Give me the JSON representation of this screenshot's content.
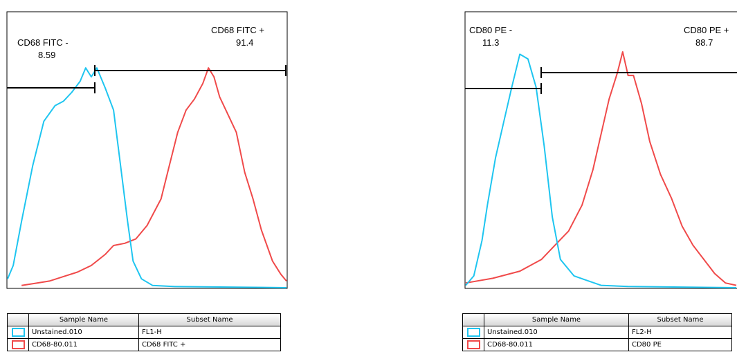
{
  "chart_data": [
    {
      "type": "histogram",
      "parameter": "FL1-H",
      "series": [
        {
          "name": "Unstained.010",
          "color": "#1ec5f0",
          "values": [
            [
              0,
              0.04
            ],
            [
              0.02,
              0.1
            ],
            [
              0.05,
              0.3
            ],
            [
              0.09,
              0.55
            ],
            [
              0.13,
              0.75
            ],
            [
              0.17,
              0.82
            ],
            [
              0.2,
              0.84
            ],
            [
              0.23,
              0.88
            ],
            [
              0.26,
              0.93
            ],
            [
              0.28,
              0.99
            ],
            [
              0.3,
              0.95
            ],
            [
              0.32,
              0.99
            ],
            [
              0.35,
              0.9
            ],
            [
              0.38,
              0.8
            ],
            [
              0.4,
              0.6
            ],
            [
              0.43,
              0.3
            ],
            [
              0.45,
              0.12
            ],
            [
              0.48,
              0.04
            ],
            [
              0.52,
              0.01
            ],
            [
              0.6,
              0.005
            ],
            [
              1,
              0
            ]
          ]
        },
        {
          "name": "CD68-80.011",
          "color": "#f04a4a",
          "values": [
            [
              0.05,
              0.01
            ],
            [
              0.1,
              0.02
            ],
            [
              0.15,
              0.03
            ],
            [
              0.2,
              0.05
            ],
            [
              0.25,
              0.07
            ],
            [
              0.3,
              0.1
            ],
            [
              0.35,
              0.15
            ],
            [
              0.38,
              0.19
            ],
            [
              0.42,
              0.2
            ],
            [
              0.46,
              0.22
            ],
            [
              0.5,
              0.28
            ],
            [
              0.55,
              0.4
            ],
            [
              0.58,
              0.55
            ],
            [
              0.61,
              0.7
            ],
            [
              0.64,
              0.8
            ],
            [
              0.67,
              0.85
            ],
            [
              0.7,
              0.92
            ],
            [
              0.72,
              0.99
            ],
            [
              0.74,
              0.95
            ],
            [
              0.76,
              0.86
            ],
            [
              0.79,
              0.78
            ],
            [
              0.82,
              0.7
            ],
            [
              0.85,
              0.52
            ],
            [
              0.88,
              0.4
            ],
            [
              0.91,
              0.26
            ],
            [
              0.95,
              0.12
            ],
            [
              0.98,
              0.06
            ],
            [
              1,
              0.03
            ]
          ]
        }
      ],
      "gates": [
        {
          "label": "CD68 FITC -",
          "value": "8.59"
        },
        {
          "label": "CD68 FITC +",
          "value": "91.4"
        }
      ]
    },
    {
      "type": "histogram",
      "parameter": "FL2-H",
      "series": [
        {
          "name": "Unstained.010",
          "color": "#1ec5f0",
          "values": [
            [
              0,
              0.01
            ],
            [
              0.03,
              0.05
            ],
            [
              0.06,
              0.2
            ],
            [
              0.08,
              0.35
            ],
            [
              0.11,
              0.55
            ],
            [
              0.14,
              0.7
            ],
            [
              0.17,
              0.85
            ],
            [
              0.2,
              0.99
            ],
            [
              0.23,
              0.97
            ],
            [
              0.26,
              0.85
            ],
            [
              0.29,
              0.6
            ],
            [
              0.32,
              0.3
            ],
            [
              0.35,
              0.12
            ],
            [
              0.4,
              0.05
            ],
            [
              0.45,
              0.03
            ],
            [
              0.5,
              0.01
            ],
            [
              0.6,
              0.005
            ],
            [
              1,
              0
            ]
          ]
        },
        {
          "name": "CD68-80.011",
          "color": "#f04a4a",
          "values": [
            [
              0,
              0.02
            ],
            [
              0.1,
              0.04
            ],
            [
              0.2,
              0.07
            ],
            [
              0.28,
              0.12
            ],
            [
              0.33,
              0.18
            ],
            [
              0.38,
              0.24
            ],
            [
              0.43,
              0.35
            ],
            [
              0.47,
              0.5
            ],
            [
              0.5,
              0.65
            ],
            [
              0.53,
              0.8
            ],
            [
              0.56,
              0.91
            ],
            [
              0.58,
              1
            ],
            [
              0.6,
              0.9
            ],
            [
              0.62,
              0.9
            ],
            [
              0.65,
              0.78
            ],
            [
              0.68,
              0.62
            ],
            [
              0.72,
              0.48
            ],
            [
              0.76,
              0.38
            ],
            [
              0.8,
              0.26
            ],
            [
              0.84,
              0.18
            ],
            [
              0.88,
              0.12
            ],
            [
              0.92,
              0.06
            ],
            [
              0.96,
              0.02
            ],
            [
              1,
              0.01
            ]
          ]
        }
      ],
      "gates": [
        {
          "label": "CD80 PE -",
          "value": "11.3"
        },
        {
          "label": "CD80 PE +",
          "value": "88.7"
        }
      ]
    }
  ],
  "left_table": {
    "headers": [
      "Sample Name",
      "Subset Name"
    ],
    "rows": [
      {
        "sample": "Unstained.010",
        "subset": "FL1-H",
        "color": "#1ec5f0"
      },
      {
        "sample": "CD68-80.011",
        "subset": "CD68 FITC +",
        "color": "#f04a4a"
      }
    ]
  },
  "right_table": {
    "headers": [
      "Sample Name",
      "Subset Name"
    ],
    "rows": [
      {
        "sample": "Unstained.010",
        "subset": "FL2-H",
        "color": "#1ec5f0"
      },
      {
        "sample": "CD68-80.011",
        "subset": "CD80 PE",
        "color": "#f04a4a"
      }
    ]
  }
}
